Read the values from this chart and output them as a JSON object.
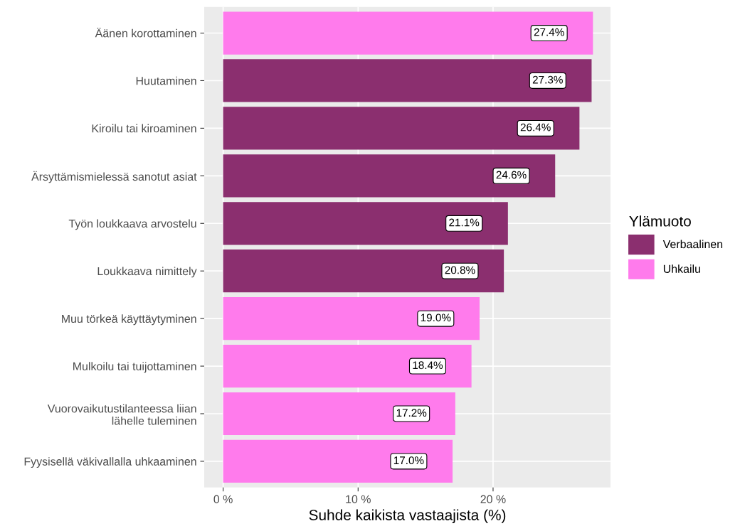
{
  "chart_data": {
    "type": "bar",
    "orientation": "horizontal",
    "xlabel": "Suhde kaikista vastaajista (%)",
    "legend_title": "Ylämuoto",
    "legend": "right",
    "categories": [
      "Äänen korottaminen",
      "Huutaminen",
      "Kiroilu tai kiroaminen",
      "Ärsyttämismielessä sanotut asiat",
      "Työn loukkaava arvostelu",
      "Loukkaava nimittely",
      "Muu törkeä käyttäytyminen",
      "Mulkoilu tai tuijottaminen",
      "Vuorovaikutustilanteessa liian\nlähelle tuleminen",
      "Fyysisellä väkivallalla uhkaaminen"
    ],
    "series": [
      {
        "name": "Verbaalinen",
        "color": "#8b2f6f",
        "values": [
          null,
          27.3,
          26.4,
          24.6,
          21.1,
          20.8,
          null,
          null,
          null,
          null
        ],
        "value_labels": [
          null,
          "27.3%",
          "26.4%",
          "24.6%",
          "21.1%",
          "20.8%",
          null,
          null,
          null,
          null
        ]
      },
      {
        "name": "Uhkailu",
        "color": "#ff7bec",
        "values": [
          27.4,
          null,
          null,
          null,
          null,
          null,
          19.0,
          18.4,
          17.2,
          17.0
        ],
        "value_labels": [
          "27.4%",
          null,
          null,
          null,
          null,
          null,
          "19.0%",
          "18.4%",
          "17.2%",
          "17.0%"
        ]
      }
    ],
    "xlim": [
      -1.4,
      28.7
    ],
    "xticks": [
      {
        "value": 0,
        "label": "0 %"
      },
      {
        "value": 10,
        "label": "10 %"
      },
      {
        "value": 20,
        "label": "20 %"
      }
    ],
    "grid": true
  }
}
